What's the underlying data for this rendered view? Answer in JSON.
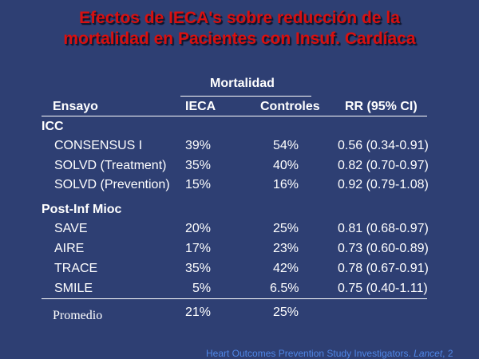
{
  "title": {
    "line1": "Efectos de IECA's sobre reducción de la",
    "line2": "mortalidad en Pacientes con Insuf. Cardíaca"
  },
  "table": {
    "group_header": "Mortalidad",
    "columns": [
      "Ensayo",
      "IECA",
      "Controles",
      "RR (95% CI)"
    ],
    "groups": [
      {
        "label": "ICC",
        "rows": [
          {
            "trial": "CONSENSUS I",
            "ieca": "39%",
            "controles": "54%",
            "rr": "0.56 (0.34-0.91)"
          },
          {
            "trial": "SOLVD (Treatment)",
            "ieca": "35%",
            "controles": "40%",
            "rr": "0.82 (0.70-0.97)"
          },
          {
            "trial": "SOLVD (Prevention)",
            "ieca": "15%",
            "controles": "16%",
            "rr": "0.92 (0.79-1.08)"
          }
        ]
      },
      {
        "label": "Post-Inf Mioc",
        "rows": [
          {
            "trial": "SAVE",
            "ieca": "20%",
            "controles": "25%",
            "rr": "0.81 (0.68-0.97)"
          },
          {
            "trial": "AIRE",
            "ieca": "17%",
            "controles": "23%",
            "rr": "0.73 (0.60-0.89)"
          },
          {
            "trial": "TRACE",
            "ieca": "35%",
            "controles": "42%",
            "rr": "0.78 (0.67-0.91)"
          },
          {
            "trial": "SMILE",
            "ieca": "5%",
            "controles": "6.5%",
            "rr": "0.75 (0.40-1.11)"
          }
        ]
      }
    ],
    "summary": {
      "label": "Promedio",
      "ieca": "21%",
      "controles": "25%"
    }
  },
  "footer": {
    "source": "Heart Outcomes Prevention Study Investigators.",
    "journal": "Lancet",
    "suffix": ", 2"
  },
  "colors": {
    "background": "#2e3f73",
    "title": "#d81010",
    "text": "#ffffff",
    "footer": "#4f86e6"
  }
}
